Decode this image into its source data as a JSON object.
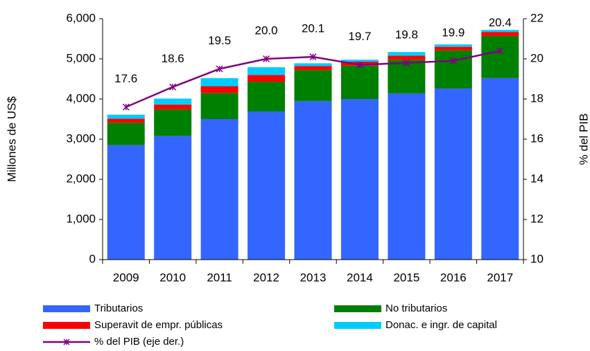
{
  "chart_data": {
    "type": "bar",
    "categories": [
      "2009",
      "2010",
      "2011",
      "2012",
      "2013",
      "2014",
      "2015",
      "2016",
      "2017"
    ],
    "ylabel": "Millones de US$",
    "y2label": "% del PIB",
    "ylim": [
      0,
      6000
    ],
    "yticks": [
      0,
      {
        "value": 1000,
        "label": "1,000"
      },
      {
        "value": 2000,
        "label": "2,000"
      },
      {
        "value": 3000,
        "label": "3,000"
      },
      {
        "value": 4000,
        "label": "4,000"
      },
      {
        "value": 5000,
        "label": "5,000"
      },
      {
        "value": 6000,
        "label": "6,000"
      }
    ],
    "y2lim": [
      10,
      22
    ],
    "y2ticks": [
      10,
      12,
      14,
      16,
      18,
      20,
      22
    ],
    "stacked": true,
    "series": [
      {
        "name": "Tributarios",
        "color": "#3366ff",
        "values": [
          2850,
          3080,
          3500,
          3690,
          3950,
          4000,
          4140,
          4260,
          4520
        ]
      },
      {
        "name": "No tributarios",
        "color": "#008000",
        "values": [
          560,
          660,
          650,
          740,
          770,
          830,
          840,
          950,
          1050
        ]
      },
      {
        "name": "Superavit de empr. públicas",
        "color": "#ff0000",
        "values": [
          100,
          120,
          170,
          170,
          100,
          100,
          100,
          90,
          100
        ]
      },
      {
        "name": "Donac. e ingr. de capital",
        "color": "#00ccff",
        "values": [
          100,
          150,
          200,
          190,
          70,
          50,
          90,
          60,
          50
        ]
      },
      {
        "name": "% del PIB (eje der.)",
        "color": "#800080",
        "type": "line",
        "axis": "y2",
        "values": [
          17.6,
          18.6,
          19.5,
          20.0,
          20.1,
          19.7,
          19.8,
          19.9,
          20.4
        ],
        "value_labels": [
          "17.6",
          "18.6",
          "19.5",
          "20.0",
          "20.1",
          "19.7",
          "19.8",
          "19.9",
          "20.4"
        ]
      }
    ]
  }
}
